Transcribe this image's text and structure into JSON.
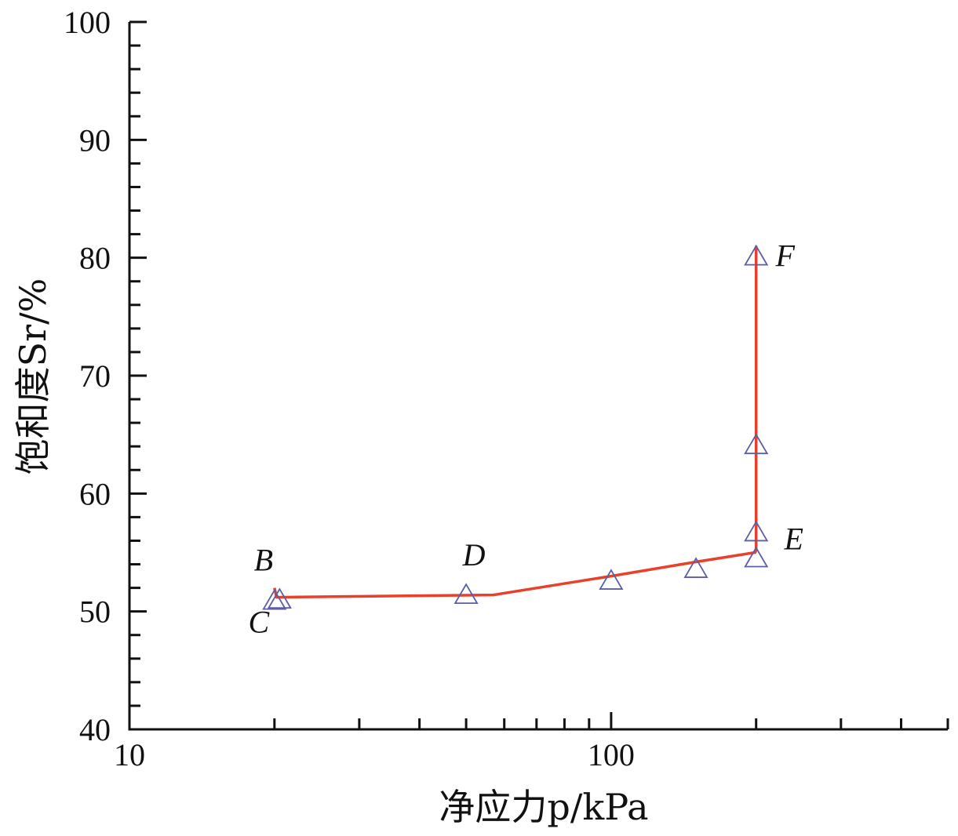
{
  "chart_data": {
    "type": "line",
    "x_scale": "log",
    "xlim": [
      10,
      500
    ],
    "ylim": [
      40,
      100
    ],
    "x_ticks": [
      10,
      100
    ],
    "y_ticks": [
      40,
      50,
      60,
      70,
      80,
      90,
      100
    ],
    "xlabel": "净应力p/kPa",
    "ylabel": "饱和度Sr/%",
    "series": [
      {
        "style": "line",
        "color": "#e8402a",
        "x": [
          20,
          20.2,
          57,
          100,
          150,
          199,
          200,
          200
        ],
        "y": [
          52,
          51.2,
          51.4,
          53,
          54.2,
          55,
          55.2,
          81
        ]
      },
      {
        "style": "triangle-markers",
        "color": "#5b5ea6",
        "x": [
          20,
          20.5,
          50,
          100,
          150,
          200,
          200,
          200,
          200
        ],
        "y": [
          51,
          51.1,
          51.5,
          52.7,
          53.7,
          54.6,
          56.8,
          64.2,
          80.2
        ]
      }
    ],
    "annotations": [
      {
        "text": "B",
        "x": 20,
        "y": 52
      },
      {
        "text": "C",
        "x": 20,
        "y": 51
      },
      {
        "text": "D",
        "x": 50,
        "y": 51.5
      },
      {
        "text": "E",
        "x": 200,
        "y": 55
      },
      {
        "text": "F",
        "x": 200,
        "y": 80.2
      }
    ]
  }
}
